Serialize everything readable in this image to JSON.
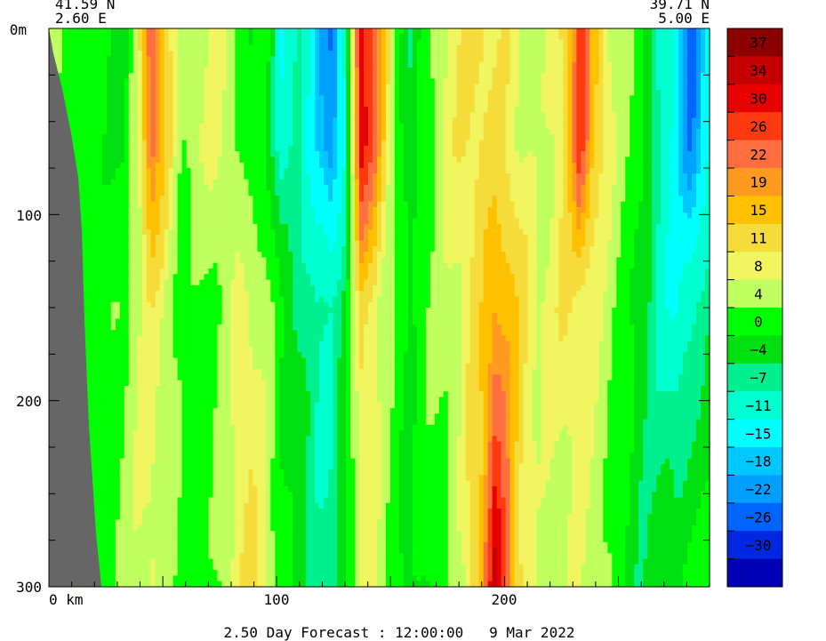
{
  "chart_data": {
    "type": "heatmap",
    "corner_left": {
      "lat": "41.59 N",
      "lon": "2.60 E"
    },
    "corner_right": {
      "lat": "39.71 N",
      "lon": "5.00 E"
    },
    "y_ticks": [
      "0m",
      "100",
      "200",
      "300"
    ],
    "x_ticks": [
      "0 km",
      "100",
      "200"
    ],
    "ylim": [
      300,
      0
    ],
    "xlim": [
      0,
      290
    ],
    "footer": "2.50 Day Forecast : 12:00:00   9 Mar 2022",
    "colorbar": {
      "labels": [
        "37",
        "34",
        "30",
        "26",
        "22",
        "19",
        "15",
        "11",
        "8",
        "4",
        "0",
        "−4",
        "−7",
        "−11",
        "−15",
        "−18",
        "−22",
        "−26",
        "−30"
      ],
      "colors": [
        "#8b0000",
        "#c40000",
        "#e60000",
        "#ff3a10",
        "#ff6e40",
        "#ff9a20",
        "#ffc000",
        "#f5dc3a",
        "#f0f560",
        "#c0ff60",
        "#00ff00",
        "#00e010",
        "#00f090",
        "#00ffd0",
        "#00ffff",
        "#00c8ff",
        "#00a0ff",
        "#0064ff",
        "#0028e0",
        "#0000b4"
      ]
    },
    "columns": [
      {
        "x": 0,
        "top": 4,
        "mid": 2,
        "bot": 3
      },
      {
        "x": 12,
        "top": 2,
        "mid": 3,
        "bot": 4
      },
      {
        "x": 24,
        "top": 1,
        "mid": 2,
        "bot": 2
      },
      {
        "x": 33,
        "top": -2,
        "mid": 4,
        "bot": 6
      },
      {
        "x": 40,
        "top": 10,
        "mid": 8,
        "bot": 8
      },
      {
        "x": 45,
        "top": 26,
        "mid": 10,
        "bot": 9
      },
      {
        "x": 50,
        "top": 16,
        "mid": 8,
        "bot": 6
      },
      {
        "x": 58,
        "top": 4,
        "mid": 3,
        "bot": 3
      },
      {
        "x": 66,
        "top": 8,
        "mid": 2,
        "bot": 1
      },
      {
        "x": 74,
        "top": 9,
        "mid": 4,
        "bot": 4
      },
      {
        "x": 82,
        "top": 5,
        "mid": 8,
        "bot": 10
      },
      {
        "x": 88,
        "top": 0,
        "mid": 9,
        "bot": 12
      },
      {
        "x": 95,
        "top": 2,
        "mid": 6,
        "bot": 9
      },
      {
        "x": 102,
        "top": -10,
        "mid": 0,
        "bot": 2
      },
      {
        "x": 110,
        "top": -7,
        "mid": -4,
        "bot": -2
      },
      {
        "x": 118,
        "top": -15,
        "mid": -8,
        "bot": -5
      },
      {
        "x": 124,
        "top": -22,
        "mid": -6,
        "bot": -8
      },
      {
        "x": 130,
        "top": -11,
        "mid": -2,
        "bot": 0
      },
      {
        "x": 137,
        "top": 34,
        "mid": 12,
        "bot": 8
      },
      {
        "x": 143,
        "top": 24,
        "mid": 10,
        "bot": 8
      },
      {
        "x": 150,
        "top": 8,
        "mid": 4,
        "bot": 3
      },
      {
        "x": 158,
        "top": -4,
        "mid": 0,
        "bot": -2
      },
      {
        "x": 166,
        "top": 2,
        "mid": 4,
        "bot": 1
      },
      {
        "x": 174,
        "top": 9,
        "mid": 6,
        "bot": 2
      },
      {
        "x": 182,
        "top": 11,
        "mid": 9,
        "bot": 8
      },
      {
        "x": 190,
        "top": 12,
        "mid": 14,
        "bot": 18
      },
      {
        "x": 196,
        "top": 11,
        "mid": 20,
        "bot": 36
      },
      {
        "x": 202,
        "top": 10,
        "mid": 18,
        "bot": 22
      },
      {
        "x": 208,
        "top": 8,
        "mid": 12,
        "bot": 10
      },
      {
        "x": 215,
        "top": 6,
        "mid": 9,
        "bot": 6
      },
      {
        "x": 222,
        "top": 9,
        "mid": 10,
        "bot": 5
      },
      {
        "x": 228,
        "top": 14,
        "mid": 11,
        "bot": 7
      },
      {
        "x": 233,
        "top": 30,
        "mid": 10,
        "bot": 8
      },
      {
        "x": 238,
        "top": 18,
        "mid": 9,
        "bot": 6
      },
      {
        "x": 245,
        "top": 10,
        "mid": 6,
        "bot": 4
      },
      {
        "x": 252,
        "top": 5,
        "mid": 2,
        "bot": 0
      },
      {
        "x": 260,
        "top": 2,
        "mid": -2,
        "bot": -4
      },
      {
        "x": 268,
        "top": -8,
        "mid": -8,
        "bot": -2
      },
      {
        "x": 275,
        "top": -12,
        "mid": -12,
        "bot": 0
      },
      {
        "x": 282,
        "top": -24,
        "mid": -8,
        "bot": 2
      },
      {
        "x": 290,
        "top": -11,
        "mid": -3,
        "bot": 0
      }
    ]
  }
}
